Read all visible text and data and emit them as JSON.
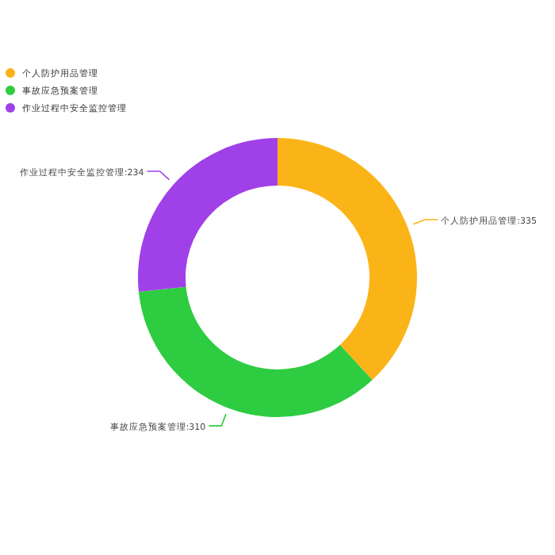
{
  "chart_data": {
    "type": "donut",
    "categories": [
      "个人防护用品管理",
      "事故应急预案管理",
      "作业过程中安全监控管理"
    ],
    "values": [
      335,
      310,
      234
    ],
    "colors": [
      "#fbb417",
      "#2ecc40",
      "#a040e8"
    ],
    "value_labels": [
      ":335",
      ":310",
      ":234"
    ],
    "legend": "top left"
  }
}
